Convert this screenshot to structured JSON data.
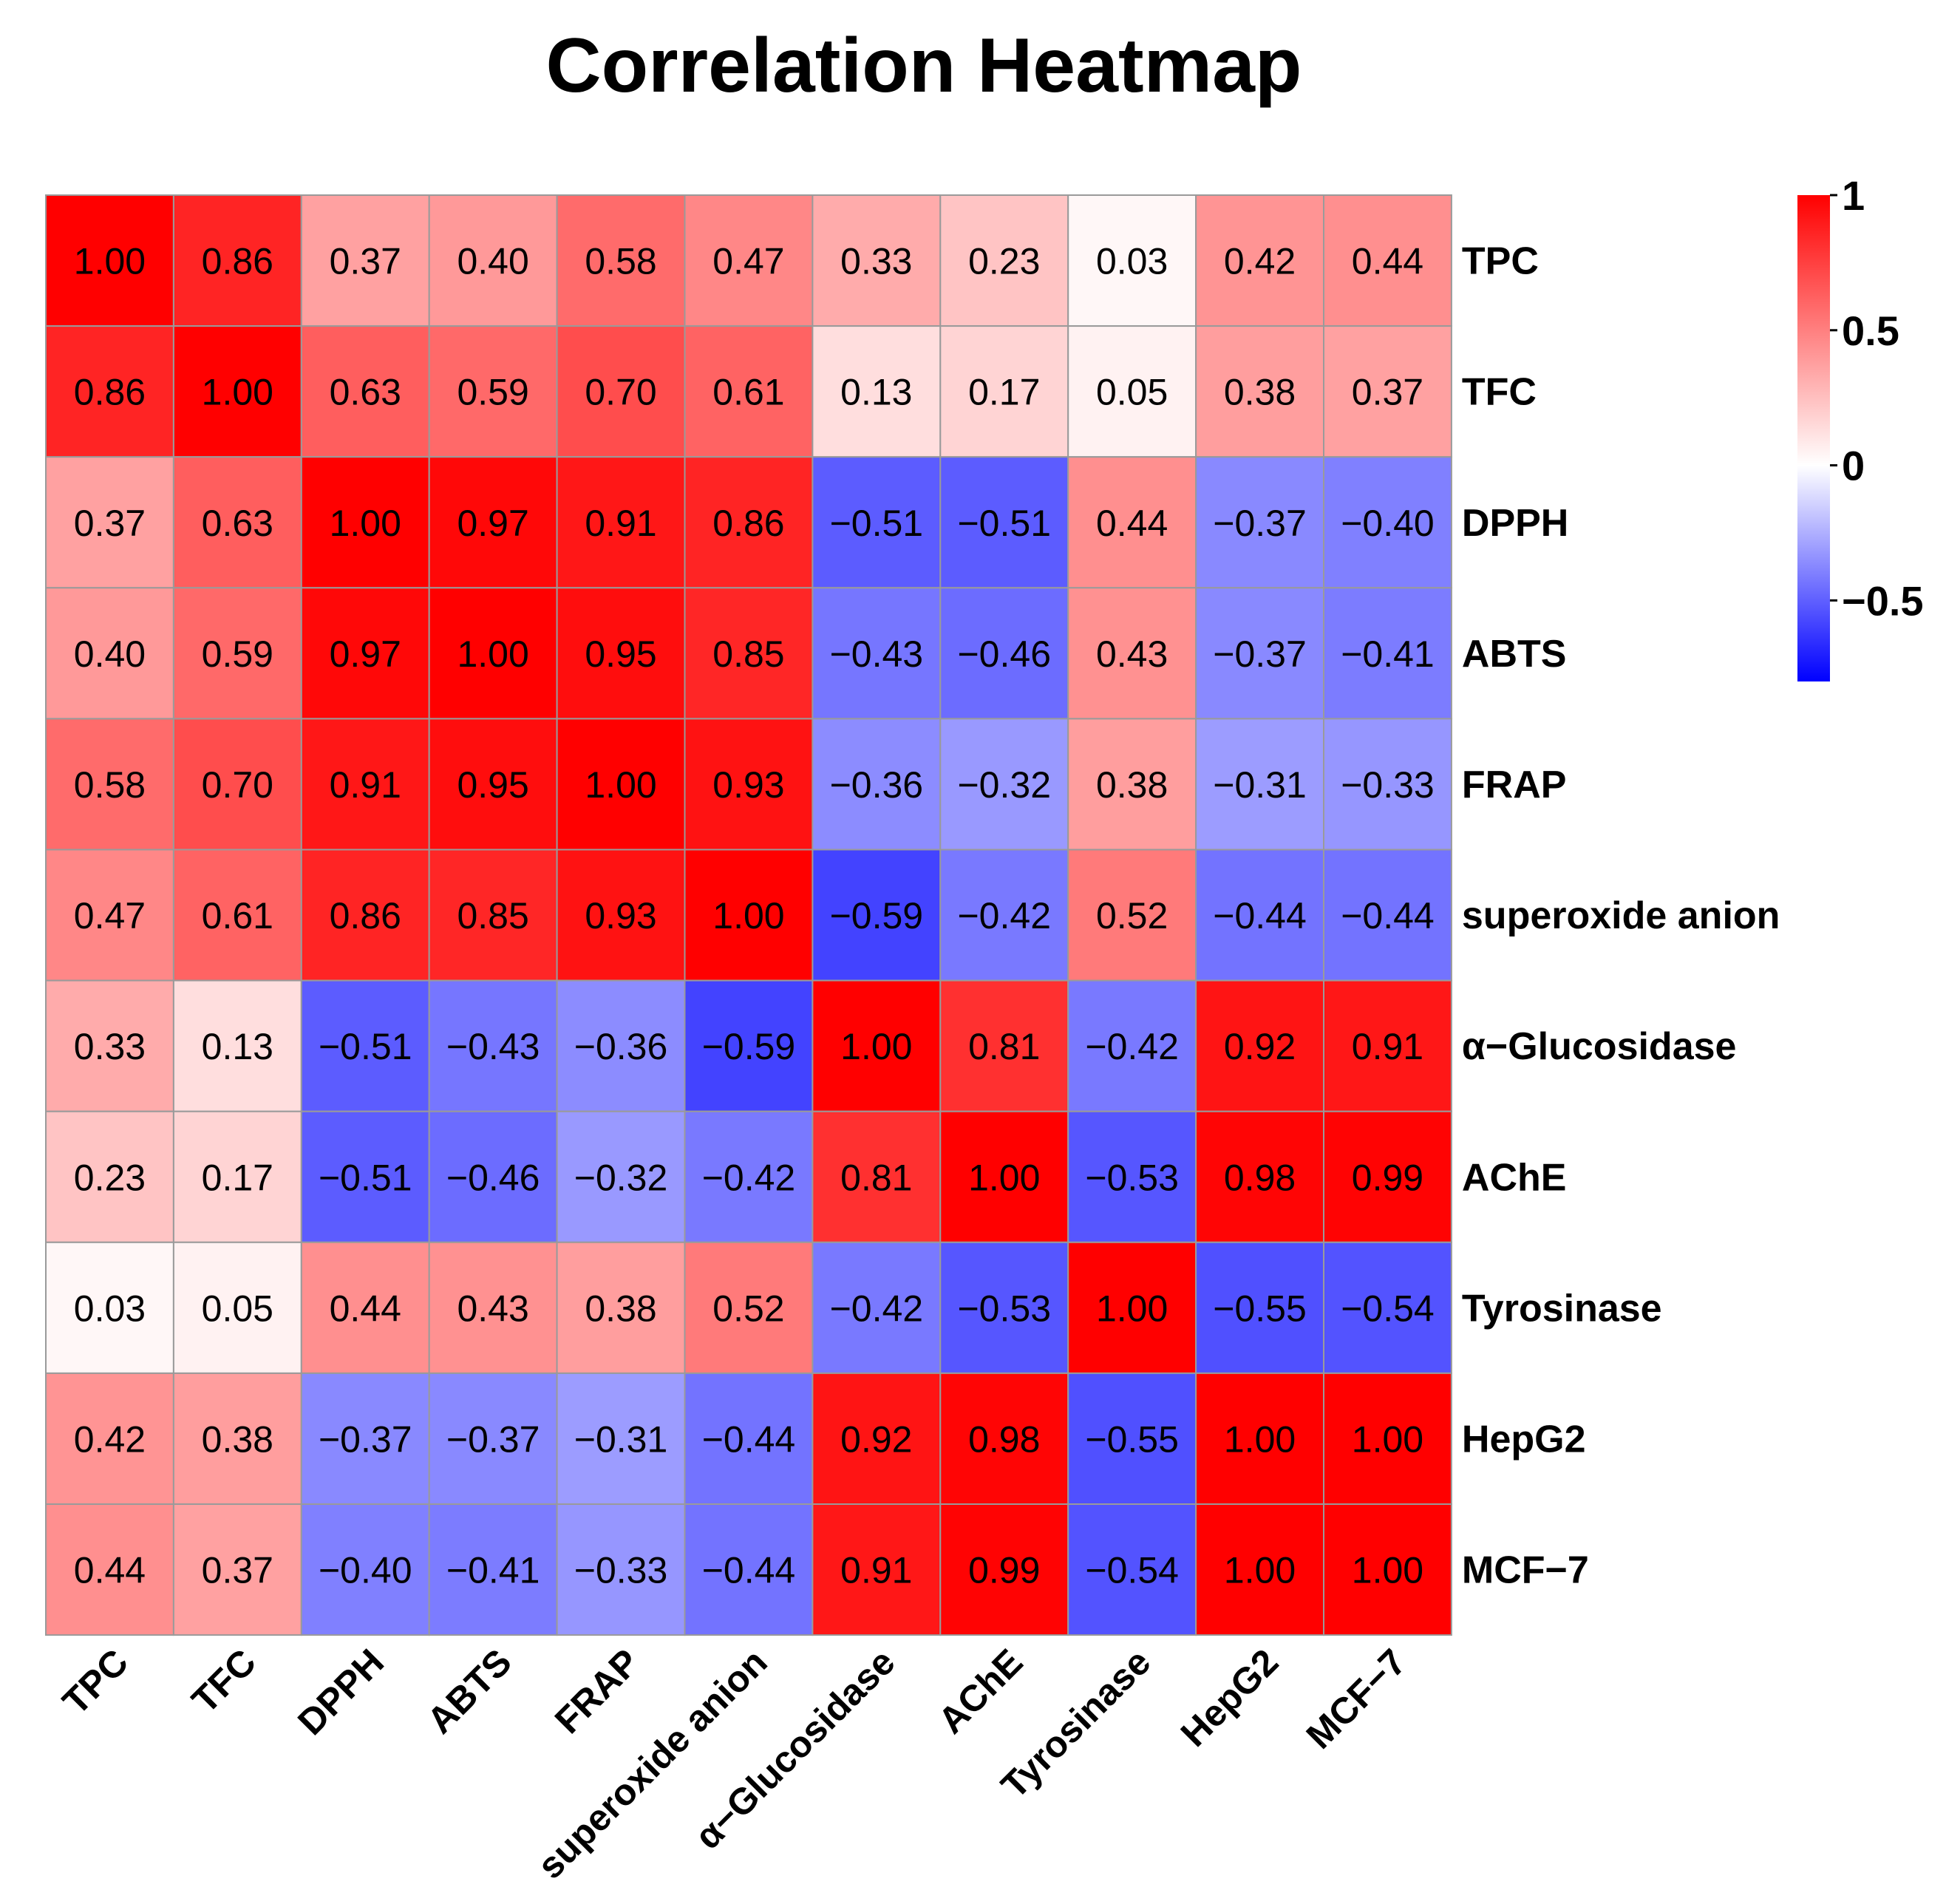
{
  "chart_data": {
    "type": "heatmap",
    "title": "Correlation Heatmap",
    "rows": [
      "TPC",
      "TFC",
      "DPPH",
      "ABTS",
      "FRAP",
      "superoxide anion",
      "α−Glucosidase",
      "AChE",
      "Tyrosinase",
      "HepG2",
      "MCF−7"
    ],
    "columns": [
      "TPC",
      "TFC",
      "DPPH",
      "ABTS",
      "FRAP",
      "superoxide anion",
      "α−Glucosidase",
      "AChE",
      "Tyrosinase",
      "HepG2",
      "MCF−7"
    ],
    "values": [
      [
        1.0,
        0.86,
        0.37,
        0.4,
        0.58,
        0.47,
        0.33,
        0.23,
        0.03,
        0.42,
        0.44
      ],
      [
        0.86,
        1.0,
        0.63,
        0.59,
        0.7,
        0.61,
        0.13,
        0.17,
        0.05,
        0.38,
        0.37
      ],
      [
        0.37,
        0.63,
        1.0,
        0.97,
        0.91,
        0.86,
        -0.51,
        -0.51,
        0.44,
        -0.37,
        -0.4
      ],
      [
        0.4,
        0.59,
        0.97,
        1.0,
        0.95,
        0.85,
        -0.43,
        -0.46,
        0.43,
        -0.37,
        -0.41
      ],
      [
        0.58,
        0.7,
        0.91,
        0.95,
        1.0,
        0.93,
        -0.36,
        -0.32,
        0.38,
        -0.31,
        -0.33
      ],
      [
        0.47,
        0.61,
        0.86,
        0.85,
        0.93,
        1.0,
        -0.59,
        -0.42,
        0.52,
        -0.44,
        -0.44
      ],
      [
        0.33,
        0.13,
        -0.51,
        -0.43,
        -0.36,
        -0.59,
        1.0,
        0.81,
        -0.42,
        0.92,
        0.91
      ],
      [
        0.23,
        0.17,
        -0.51,
        -0.46,
        -0.32,
        -0.42,
        0.81,
        1.0,
        -0.53,
        0.98,
        0.99
      ],
      [
        0.03,
        0.05,
        0.44,
        0.43,
        0.38,
        0.52,
        -0.42,
        -0.53,
        1.0,
        -0.55,
        -0.54
      ],
      [
        0.42,
        0.38,
        -0.37,
        -0.37,
        -0.31,
        -0.44,
        0.92,
        0.98,
        -0.55,
        1.0,
        1.0
      ],
      [
        0.44,
        0.37,
        -0.4,
        -0.41,
        -0.33,
        -0.44,
        0.91,
        0.99,
        -0.54,
        1.0,
        1.0
      ]
    ],
    "value_format": "2 decimals",
    "color_range": [
      -0.8,
      1
    ],
    "legend": {
      "position": "top-right",
      "ticks": [
        1,
        0.5,
        0,
        -0.5
      ],
      "tick_labels": [
        "1",
        "0.5",
        "0",
        "−0.5"
      ],
      "colors": {
        "high": "#ff0000",
        "mid": "#ffffff",
        "low": "#0000ff"
      }
    },
    "colors": {
      "grid_line": "#9a9a9a",
      "text": "#000000"
    }
  }
}
